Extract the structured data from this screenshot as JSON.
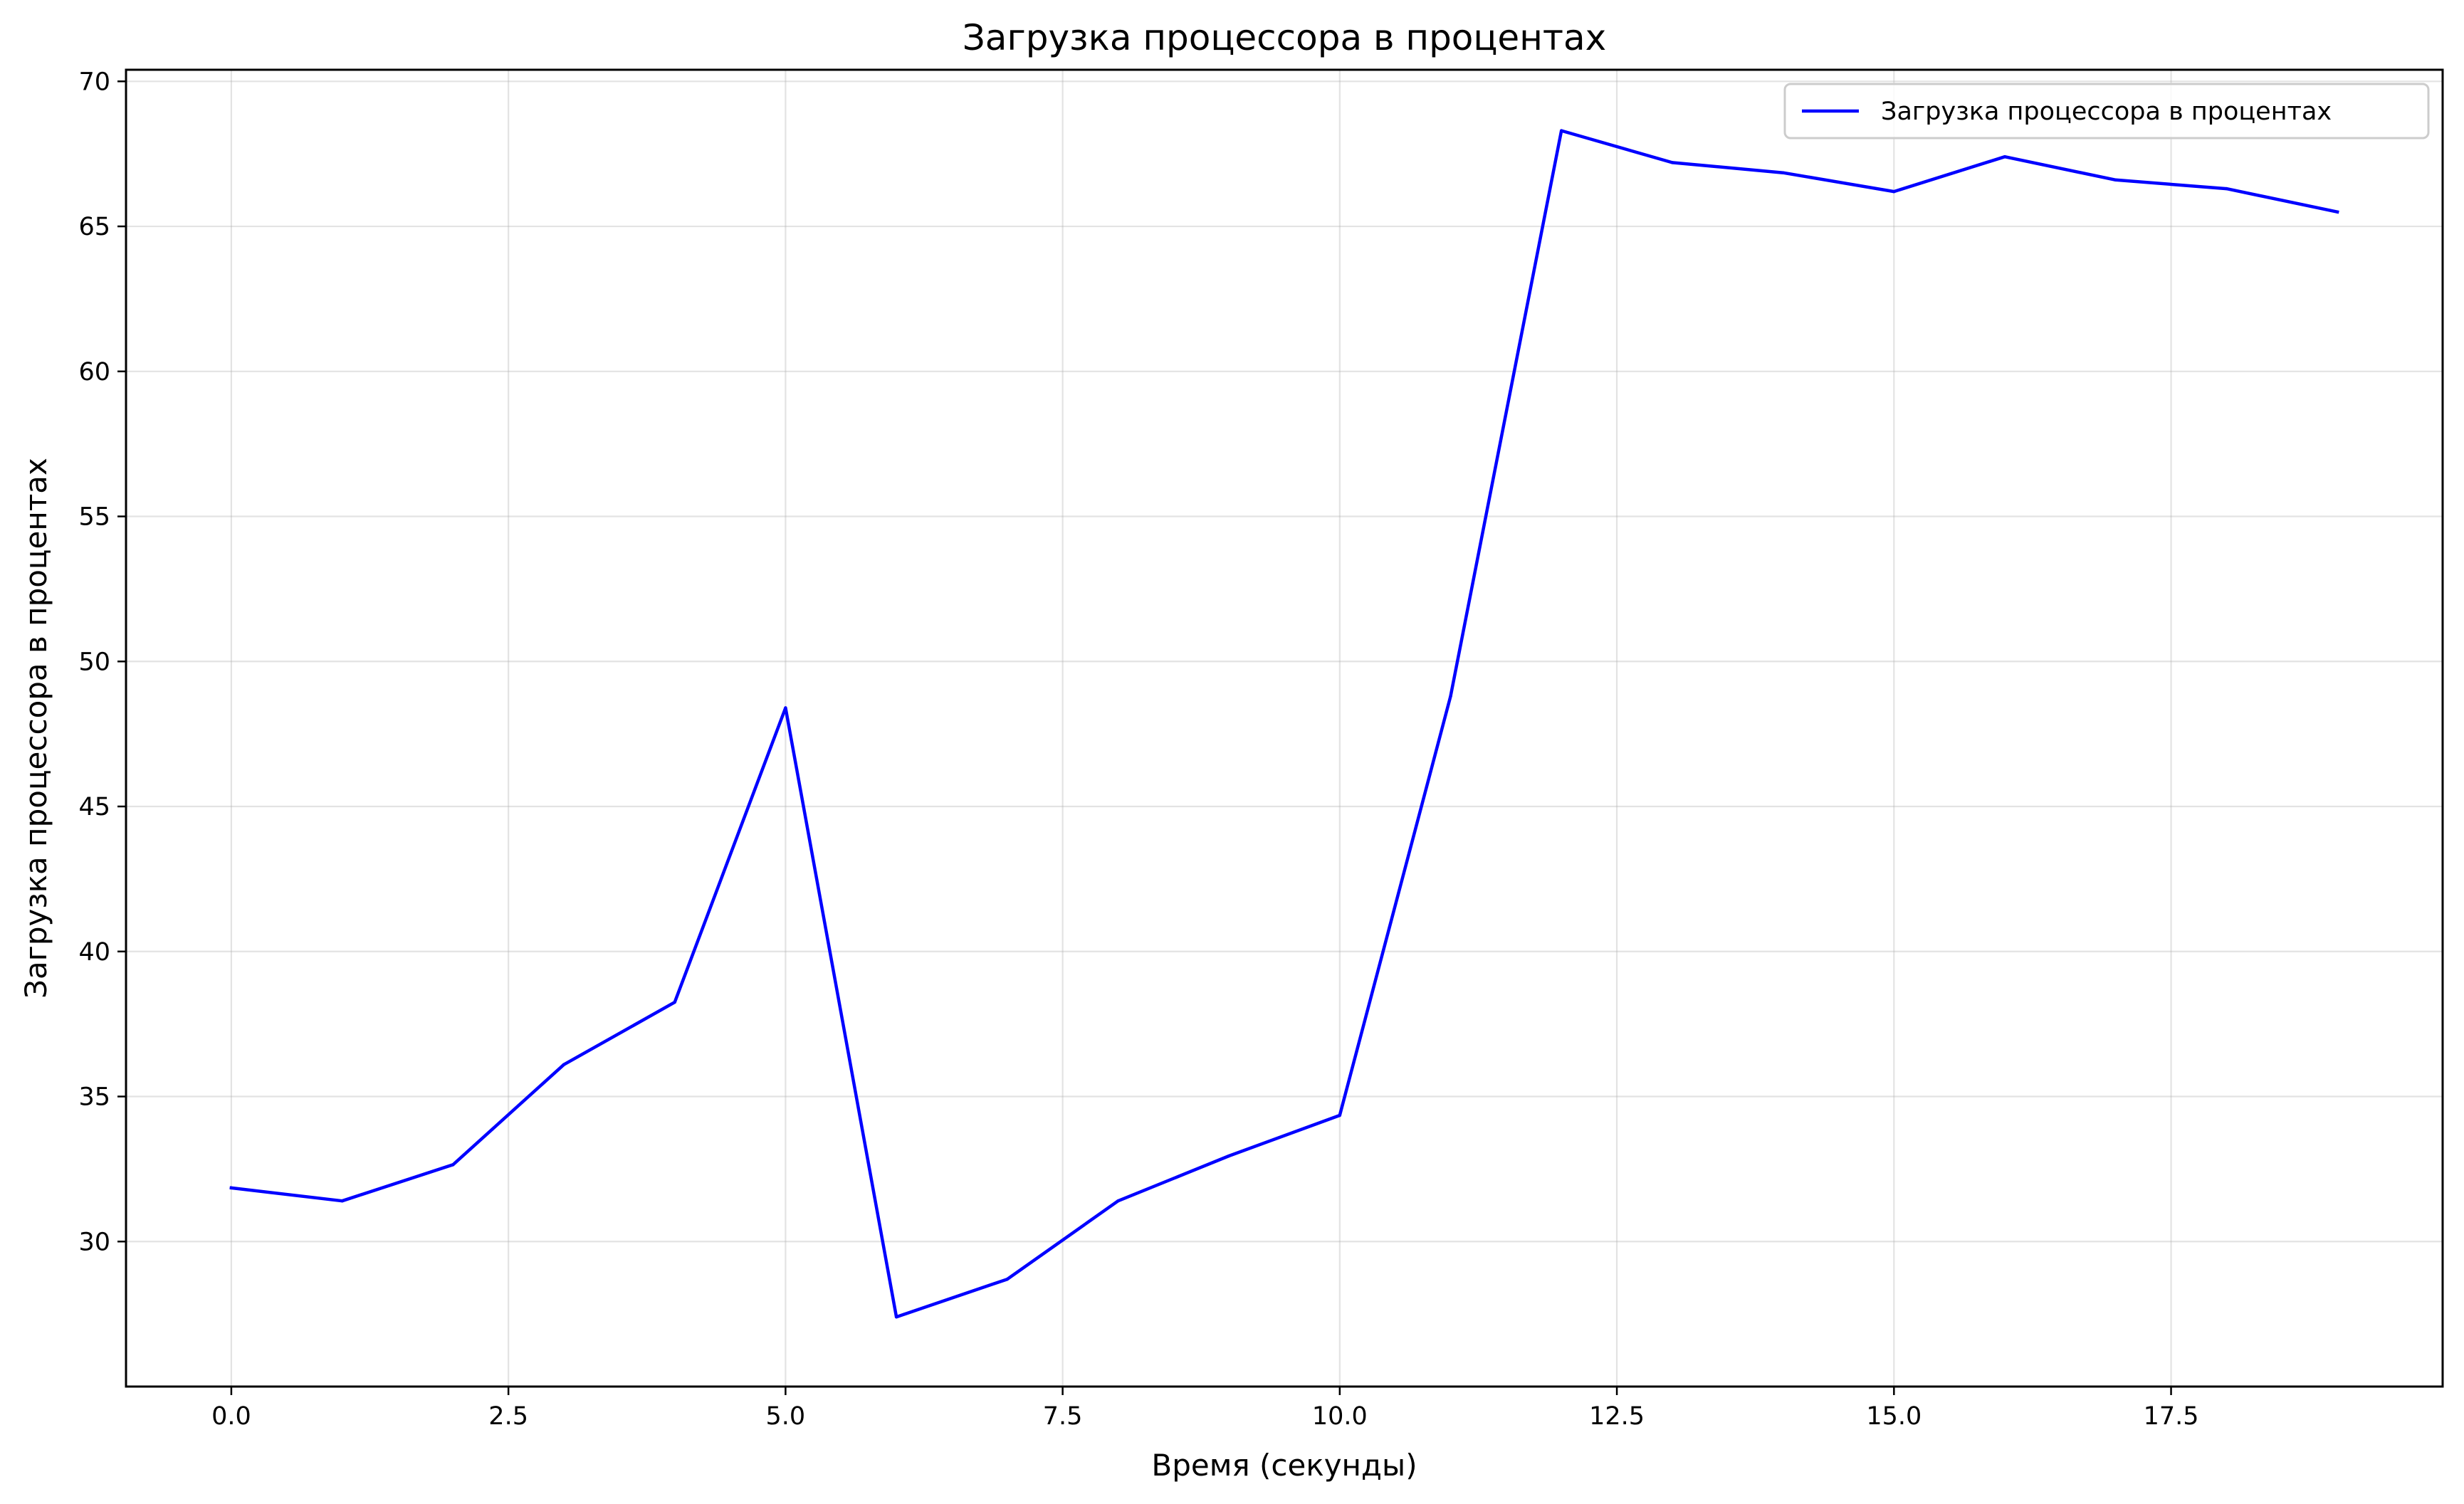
{
  "chart_data": {
    "type": "line",
    "title": "Загрузка процессора в процентах",
    "xlabel": "Время (секунды)",
    "ylabel": "Загрузка процессора в процентах",
    "xlim": [
      -0.95,
      19.95
    ],
    "ylim": [
      25.0,
      70.4
    ],
    "x_ticks": [
      0.0,
      2.5,
      5.0,
      7.5,
      10.0,
      12.5,
      15.0,
      17.5
    ],
    "x_tick_labels": [
      "0.0",
      "2.5",
      "5.0",
      "7.5",
      "10.0",
      "12.5",
      "15.0",
      "17.5"
    ],
    "y_ticks": [
      30,
      35,
      40,
      45,
      50,
      55,
      60,
      65,
      70
    ],
    "y_tick_labels": [
      "30",
      "35",
      "40",
      "45",
      "50",
      "55",
      "60",
      "65",
      "70"
    ],
    "grid": true,
    "legend_position": "top-right",
    "series": [
      {
        "name": "Загрузка процессора в процентах",
        "color": "#0000ff",
        "x": [
          0,
          1,
          2,
          3,
          4,
          5,
          6,
          7,
          8,
          9,
          10,
          11,
          12,
          13,
          14,
          15,
          16,
          17,
          18,
          19
        ],
        "y": [
          31.85,
          31.4,
          32.65,
          36.1,
          38.25,
          48.4,
          27.4,
          28.7,
          31.4,
          32.95,
          34.35,
          48.8,
          68.3,
          67.2,
          66.85,
          66.2,
          67.4,
          66.6,
          66.3,
          65.5
        ]
      }
    ]
  }
}
